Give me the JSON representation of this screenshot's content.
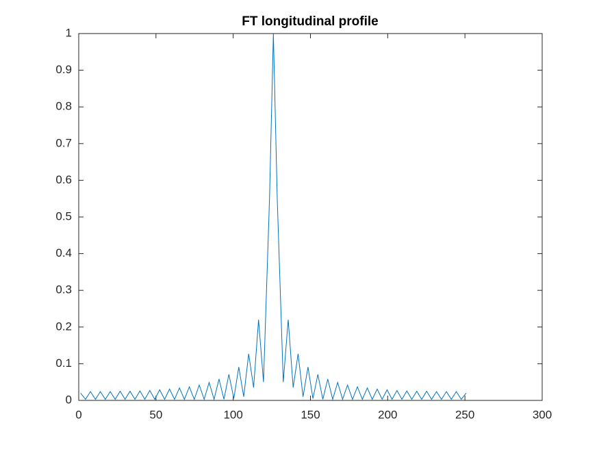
{
  "chart_data": {
    "type": "line",
    "title": "FT longitudinal profile",
    "x": [
      1.2,
      4.4,
      7.6,
      10.8,
      14.0,
      17.2,
      20.4,
      23.6,
      26.8,
      30.0,
      33.2,
      36.4,
      39.6,
      42.8,
      46.0,
      49.2,
      52.4,
      55.6,
      58.8,
      62.0,
      65.2,
      68.4,
      71.6,
      74.8,
      78.0,
      81.2,
      84.4,
      87.6,
      90.8,
      94.0,
      97.2,
      100.4,
      103.6,
      106.8,
      110.0,
      113.2,
      116.4,
      119.6,
      123.5,
      126,
      128.5,
      132.4,
      135.6,
      138.8,
      142.0,
      145.2,
      148.4,
      151.6,
      154.8,
      158.0,
      161.2,
      164.4,
      167.6,
      170.8,
      174.0,
      177.2,
      180.4,
      183.6,
      186.8,
      190.0,
      193.2,
      196.4,
      199.6,
      202.8,
      206.0,
      209.2,
      212.4,
      215.6,
      218.8,
      222.0,
      225.2,
      228.4,
      231.6,
      234.8,
      238.0,
      241.2,
      244.4,
      247.6,
      250.8
    ],
    "series": [
      {
        "color": "#0072bd",
        "values": [
          0.02,
          0.003,
          0.024,
          0.003,
          0.024,
          0.003,
          0.024,
          0.003,
          0.025,
          0.003,
          0.025,
          0.003,
          0.026,
          0.003,
          0.027,
          0.003,
          0.029,
          0.003,
          0.031,
          0.003,
          0.034,
          0.003,
          0.037,
          0.003,
          0.042,
          0.003,
          0.049,
          0.003,
          0.058,
          0.003,
          0.071,
          0.005,
          0.091,
          0.01,
          0.127,
          0.035,
          0.22,
          0.05,
          0.55,
          1,
          0.55,
          0.05,
          0.22,
          0.035,
          0.127,
          0.01,
          0.091,
          0.005,
          0.071,
          0.003,
          0.058,
          0.003,
          0.049,
          0.003,
          0.042,
          0.003,
          0.037,
          0.003,
          0.034,
          0.003,
          0.031,
          0.003,
          0.029,
          0.003,
          0.027,
          0.003,
          0.026,
          0.003,
          0.025,
          0.003,
          0.025,
          0.003,
          0.024,
          0.003,
          0.024,
          0.003,
          0.024,
          0.003,
          0.02
        ]
      }
    ],
    "xlim": [
      0,
      300
    ],
    "xticks": [
      0,
      50,
      100,
      150,
      200,
      250,
      300
    ],
    "ylim": [
      0,
      1
    ],
    "yticks": [
      0,
      0.1,
      0.2,
      0.3,
      0.4,
      0.5,
      0.6,
      0.7,
      0.8,
      0.9,
      1
    ],
    "grid": false
  }
}
